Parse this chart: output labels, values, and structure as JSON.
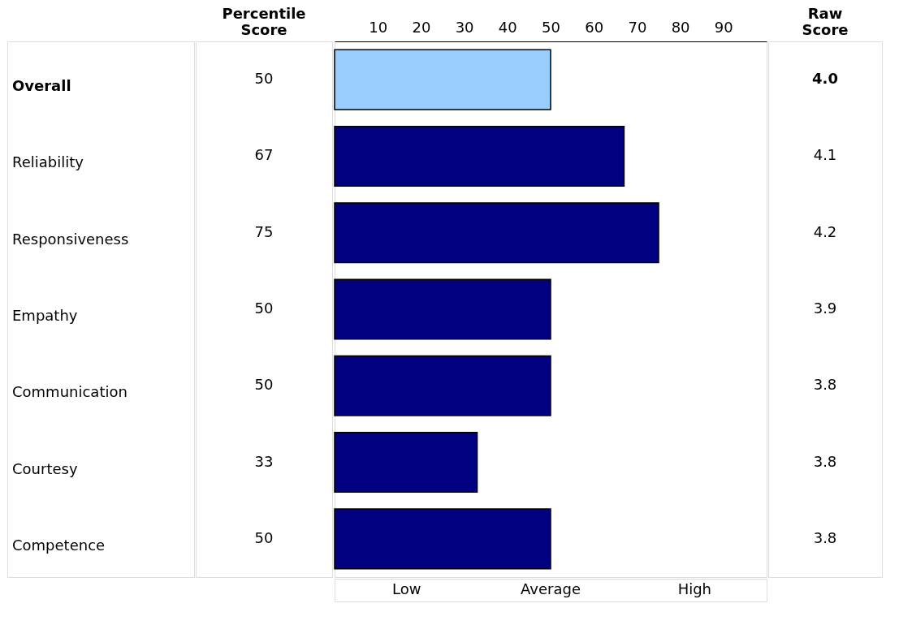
{
  "chart_data": {
    "type": "bar",
    "orientation": "horizontal",
    "categories": [
      "Overall",
      "Reliability",
      "Responsiveness",
      "Empathy",
      "Communication",
      "Courtesy",
      "Competence"
    ],
    "values": [
      50,
      67,
      75,
      50,
      50,
      33,
      50
    ],
    "colors": [
      "#99ccff",
      "#000080",
      "#000080",
      "#000080",
      "#000080",
      "#000080",
      "#000080"
    ],
    "x2lim": [
      0,
      100
    ],
    "x2ticks": [
      10,
      20,
      30,
      40,
      50,
      60,
      70,
      80,
      90
    ],
    "data_labels": true,
    "grid": false,
    "annotations": [
      "Percentile Score",
      "Raw Score",
      "4.0",
      "4.1",
      "4.2",
      "3.9",
      "3.8",
      "3.8",
      "3.8",
      "Low",
      "Average",
      "High"
    ]
  }
}
